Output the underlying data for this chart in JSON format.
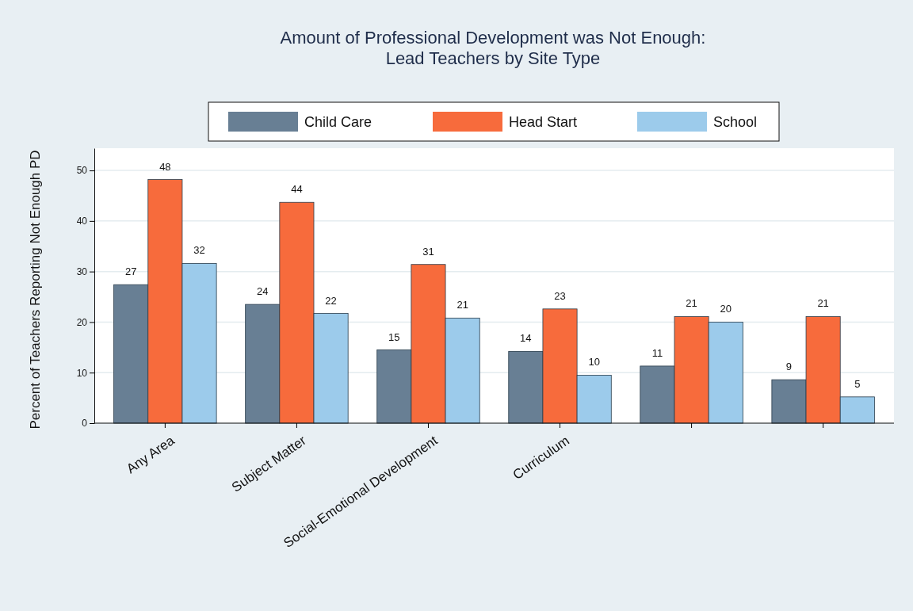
{
  "chart_data": {
    "type": "bar",
    "title": "Amount of Professional Development was Not Enough:\nLead Teachers by Site Type",
    "ylabel": "Percent of Teachers Reporting Not Enough PD",
    "categories": [
      "Any Area",
      "Subject Matter",
      "Social-Emotional Development",
      "Curriculum",
      null,
      null
    ],
    "series": [
      {
        "name": "Child Care",
        "color": "#687f94",
        "values": [
          27.4,
          23.5,
          14.5,
          14.2,
          11.3,
          8.6
        ],
        "value_labels": [
          "27",
          "24",
          "15",
          "14",
          "11",
          "9"
        ]
      },
      {
        "name": "Head Start",
        "color": "#f76b3c",
        "values": [
          48.2,
          43.7,
          31.4,
          22.6,
          21.1,
          21.1
        ],
        "value_labels": [
          "48",
          "44",
          "31",
          "23",
          "21",
          "21"
        ]
      },
      {
        "name": "School",
        "color": "#9ccbeb",
        "values": [
          31.6,
          21.7,
          20.8,
          9.5,
          20,
          5.2
        ],
        "value_labels": [
          "32",
          "22",
          "21",
          "10",
          "20",
          "5"
        ]
      }
    ],
    "ylim": [
      0,
      54.4
    ],
    "yticks": [
      0,
      10,
      20,
      30,
      40,
      50
    ],
    "grid": "y",
    "legend": "top"
  }
}
